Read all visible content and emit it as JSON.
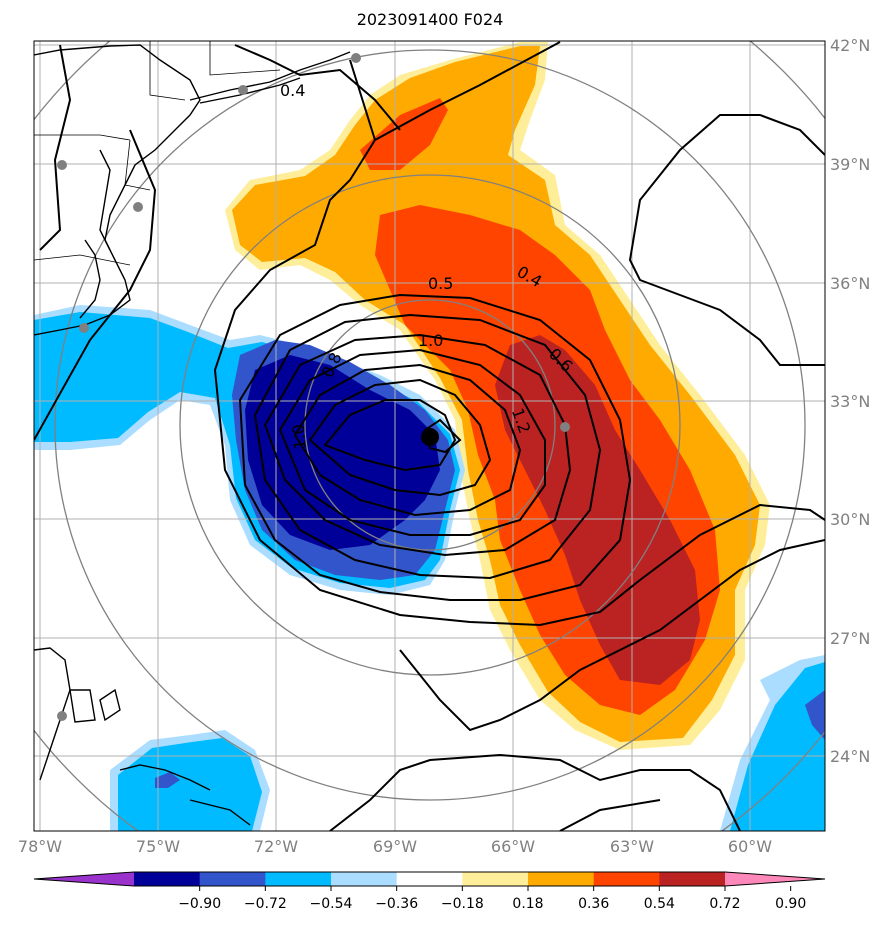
{
  "title": "2023091400 F024",
  "colors": {
    "frame": "#000000",
    "grid": "#b0b0b0",
    "rings": "#808080",
    "coast": "#000000",
    "contour": "#000000",
    "station_dot": "#808080"
  },
  "lat_ticks": [
    "42°N",
    "39°N",
    "36°N",
    "33°N",
    "30°N",
    "27°N",
    "24°N"
  ],
  "lon_ticks": [
    "78°W",
    "75°W",
    "72°W",
    "69°W",
    "66°W",
    "63°W",
    "60°W"
  ],
  "contour_labels": [
    "0.4",
    "0.4",
    "0.5",
    "0.6",
    "0.8",
    "1.0",
    "1.0",
    "1.2"
  ],
  "colorbar": {
    "ticks": [
      "−0.90",
      "−0.72",
      "−0.54",
      "−0.36",
      "−0.18",
      "0.18",
      "0.36",
      "0.54",
      "0.72",
      "0.90"
    ],
    "colors": [
      "#9933cc",
      "#000099",
      "#3355cc",
      "#00bbff",
      "#aaddff",
      "#ffffff",
      "#ffee99",
      "#ffaa00",
      "#ff4400",
      "#bb2222",
      "#ff88bb"
    ]
  },
  "fill_colors": {
    "neg_light": "#aaddff",
    "neg_mid": "#00bbff",
    "neg_strong": "#3355cc",
    "neg_deep": "#000099",
    "pos_light": "#ffee99",
    "pos_mid": "#ffaa00",
    "pos_strong": "#ff4400",
    "pos_deep": "#bb2222"
  }
}
